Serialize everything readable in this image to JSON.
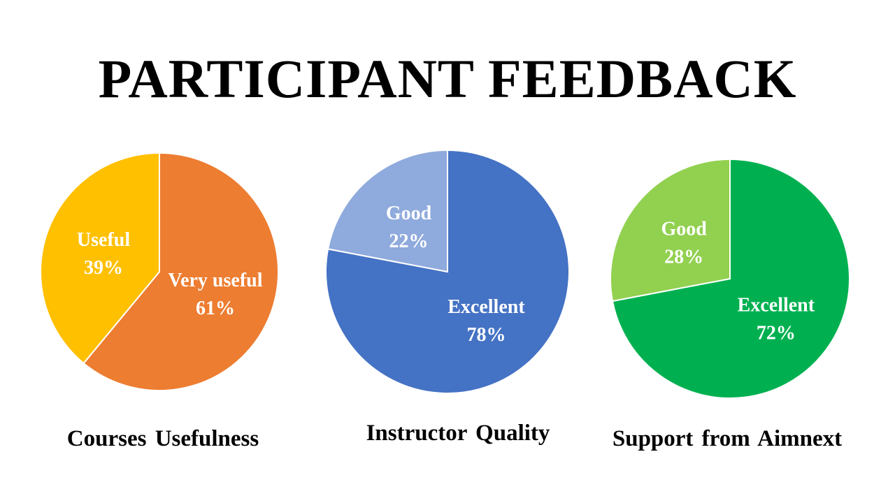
{
  "title": "PARTICIPANT FEEDBACK",
  "chart_data": [
    {
      "type": "pie",
      "title": "Courses Usefulness",
      "slices": [
        {
          "label": "Very useful",
          "value": 61,
          "display": "61%",
          "color": "#ED7D31"
        },
        {
          "label": "Useful",
          "value": 39,
          "display": "39%",
          "color": "#FFC000"
        }
      ]
    },
    {
      "type": "pie",
      "title": "Instructor Quality",
      "slices": [
        {
          "label": "Excellent",
          "value": 78,
          "display": "78%",
          "color": "#4472C4"
        },
        {
          "label": "Good",
          "value": 22,
          "display": "22%",
          "color": "#8FAADC"
        }
      ]
    },
    {
      "type": "pie",
      "title": "Support from Aimnext",
      "slices": [
        {
          "label": "Excellent",
          "value": 72,
          "display": "72%",
          "color": "#00B050"
        },
        {
          "label": "Good",
          "value": 28,
          "display": "28%",
          "color": "#92D050"
        }
      ]
    }
  ]
}
